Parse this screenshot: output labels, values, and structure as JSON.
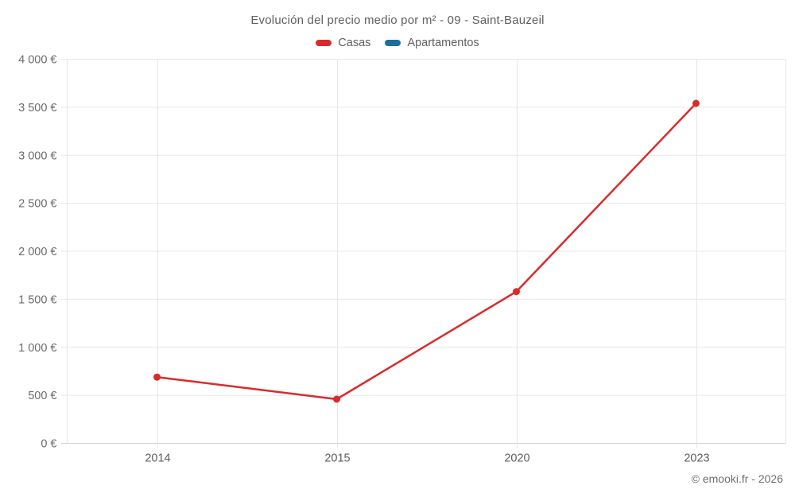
{
  "header": {
    "title": "Evolución del precio medio por m² - 09 - Saint-Bauzeil"
  },
  "legend": {
    "items": [
      {
        "label": "Casas",
        "color": "#d92b2b"
      },
      {
        "label": "Apartamentos",
        "color": "#1a6f9c"
      }
    ]
  },
  "footer": {
    "credit": "© emooki.fr - 2026"
  },
  "chart_data": {
    "type": "line",
    "title": "Evolución del precio medio por m² - 09 - Saint-Bauzeil",
    "categories": [
      "2014",
      "2015",
      "2020",
      "2023"
    ],
    "series": [
      {
        "name": "Casas",
        "color": "#d92b2b",
        "values": [
          690,
          460,
          1580,
          3540
        ]
      },
      {
        "name": "Apartamentos",
        "color": "#1a6f9c",
        "values": [
          null,
          null,
          null,
          null
        ]
      }
    ],
    "xlabel": "",
    "ylabel": "",
    "ylim": [
      0,
      4000
    ],
    "ytick_step": 500,
    "ytick_labels": [
      "0 €",
      "500 €",
      "1 000 €",
      "1 500 €",
      "2 000 €",
      "2 500 €",
      "3 000 €",
      "3 500 €",
      "4 000 €"
    ],
    "grid": true,
    "legend_position": "top",
    "marker": "circle",
    "grid_color": "#e7e7e7",
    "axis_line_color": "#d2d2d2",
    "tick_label_color": "#6b6b6b"
  }
}
